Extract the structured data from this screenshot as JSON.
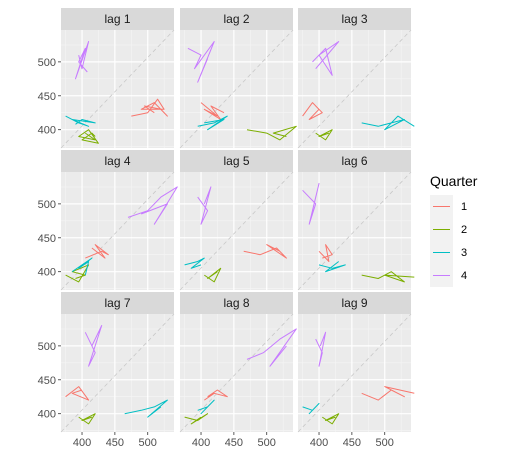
{
  "chart_data": {
    "type": "line",
    "facets": [
      "lag 1",
      "lag 2",
      "lag 3",
      "lag 4",
      "lag 5",
      "lag 6",
      "lag 7",
      "lag 8",
      "lag 9"
    ],
    "x_ticks": [
      400,
      450,
      500
    ],
    "y_ticks": [
      400,
      450,
      500
    ],
    "xlim": [
      368,
      540
    ],
    "ylim": [
      373,
      547
    ],
    "diagonal": "dashed y = x reference line",
    "grid": true,
    "legend": {
      "title": "Quarter",
      "position": "right",
      "entries": [
        {
          "label": "1",
          "color": "#F8766D"
        },
        {
          "label": "2",
          "color": "#7CAE00"
        },
        {
          "label": "3",
          "color": "#00BFC4"
        },
        {
          "label": "4",
          "color": "#C77CFF"
        }
      ]
    },
    "panels": [
      {
        "title": "lag 1",
        "series": {
          "1": [
            [
              475,
              420
            ],
            [
              500,
              425
            ],
            [
              515,
              445
            ],
            [
              525,
              430
            ],
            [
              490,
              430
            ],
            [
              510,
              440
            ],
            [
              530,
              420
            ],
            [
              520,
              430
            ],
            [
              495,
              435
            ],
            [
              510,
              425
            ]
          ],
          "2": [
            [
              405,
              395
            ],
            [
              420,
              385
            ],
            [
              395,
              390
            ],
            [
              410,
              400
            ],
            [
              425,
              380
            ],
            [
              400,
              385
            ],
            [
              415,
              395
            ],
            [
              420,
              390
            ]
          ],
          "3": [
            [
              375,
              420
            ],
            [
              395,
              410
            ],
            [
              410,
              405
            ],
            [
              385,
              415
            ],
            [
              420,
              410
            ],
            [
              400,
              415
            ],
            [
              390,
              408
            ]
          ],
          "4": [
            [
              395,
              510
            ],
            [
              400,
              490
            ],
            [
              410,
              530
            ],
            [
              390,
              475
            ],
            [
              405,
              520
            ],
            [
              395,
              500
            ],
            [
              408,
              485
            ]
          ]
        }
      },
      {
        "title": "lag 2",
        "series": {
          "1": [
            [
              400,
              440
            ],
            [
              425,
              420
            ],
            [
              405,
              430
            ],
            [
              430,
              415
            ],
            [
              415,
              435
            ],
            [
              435,
              425
            ]
          ],
          "2": [
            [
              470,
              400
            ],
            [
              500,
              395
            ],
            [
              520,
              385
            ],
            [
              545,
              405
            ],
            [
              510,
              395
            ],
            [
              530,
              390
            ]
          ],
          "3": [
            [
              395,
              405
            ],
            [
              420,
              410
            ],
            [
              440,
              420
            ],
            [
              410,
              400
            ],
            [
              435,
              415
            ],
            [
              405,
              410
            ]
          ],
          "4": [
            [
              380,
              520
            ],
            [
              400,
              510
            ],
            [
              390,
              490
            ],
            [
              420,
              530
            ],
            [
              395,
              470
            ],
            [
              410,
              505
            ]
          ]
        }
      },
      {
        "title": "lag 3",
        "series": {
          "1": [
            [
              375,
              420
            ],
            [
              390,
              440
            ],
            [
              400,
              430
            ],
            [
              385,
              415
            ],
            [
              405,
              425
            ],
            [
              395,
              435
            ]
          ],
          "2": [
            [
              395,
              395
            ],
            [
              410,
              385
            ],
            [
              420,
              400
            ],
            [
              400,
              390
            ],
            [
              415,
              395
            ]
          ],
          "3": [
            [
              465,
              410
            ],
            [
              490,
              405
            ],
            [
              510,
              410
            ],
            [
              530,
              415
            ],
            [
              500,
              400
            ],
            [
              520,
              420
            ],
            [
              545,
              405
            ]
          ],
          "4": [
            [
              390,
              500
            ],
            [
              410,
              520
            ],
            [
              420,
              480
            ],
            [
              400,
              510
            ],
            [
              430,
              530
            ],
            [
              395,
              490
            ]
          ]
        }
      },
      {
        "title": "lag 4",
        "series": {
          "1": [
            [
              405,
              420
            ],
            [
              430,
              430
            ],
            [
              440,
              425
            ],
            [
              420,
              440
            ],
            [
              435,
              420
            ],
            [
              415,
              435
            ]
          ],
          "2": [
            [
              375,
              395
            ],
            [
              395,
              385
            ],
            [
              410,
              410
            ],
            [
              385,
              400
            ],
            [
              405,
              395
            ],
            [
              390,
              390
            ]
          ],
          "3": [
            [
              385,
              400
            ],
            [
              400,
              410
            ],
            [
              415,
              420
            ],
            [
              395,
              405
            ],
            [
              410,
              415
            ],
            [
              405,
              395
            ]
          ],
          "4": [
            [
              470,
              480
            ],
            [
              500,
              490
            ],
            [
              520,
              510
            ],
            [
              545,
              525
            ],
            [
              510,
              470
            ],
            [
              530,
              500
            ],
            [
              490,
              485
            ]
          ]
        }
      },
      {
        "title": "lag 5",
        "series": {
          "1": [
            [
              465,
              430
            ],
            [
              490,
              425
            ],
            [
              515,
              435
            ],
            [
              530,
              420
            ],
            [
              500,
              440
            ],
            [
              520,
              430
            ]
          ],
          "2": [
            [
              405,
              395
            ],
            [
              420,
              385
            ],
            [
              430,
              405
            ],
            [
              410,
              390
            ],
            [
              425,
              400
            ]
          ],
          "3": [
            [
              375,
              410
            ],
            [
              395,
              415
            ],
            [
              405,
              420
            ],
            [
              385,
              405
            ],
            [
              400,
              410
            ]
          ],
          "4": [
            [
              395,
              510
            ],
            [
              410,
              490
            ],
            [
              400,
              470
            ],
            [
              415,
              525
            ],
            [
              405,
              500
            ]
          ]
        }
      },
      {
        "title": "lag 6",
        "series": {
          "1": [
            [
              400,
              430
            ],
            [
              415,
              415
            ],
            [
              410,
              440
            ],
            [
              420,
              425
            ],
            [
              405,
              420
            ]
          ],
          "2": [
            [
              465,
              395
            ],
            [
              490,
              390
            ],
            [
              510,
              400
            ],
            [
              530,
              385
            ],
            [
              500,
              395
            ],
            [
              545,
              392
            ]
          ],
          "3": [
            [
              400,
              410
            ],
            [
              420,
              405
            ],
            [
              440,
              410
            ],
            [
              410,
              400
            ],
            [
              430,
              415
            ]
          ],
          "4": [
            [
              375,
              520
            ],
            [
              395,
              500
            ],
            [
              385,
              470
            ],
            [
              400,
              530
            ],
            [
              390,
              490
            ]
          ]
        }
      },
      {
        "title": "lag 7",
        "series": {
          "1": [
            [
              375,
              425
            ],
            [
              395,
              440
            ],
            [
              410,
              420
            ],
            [
              385,
              430
            ],
            [
              400,
              435
            ]
          ],
          "2": [
            [
              395,
              395
            ],
            [
              410,
              385
            ],
            [
              420,
              400
            ],
            [
              400,
              390
            ],
            [
              415,
              395
            ]
          ],
          "3": [
            [
              465,
              400
            ],
            [
              490,
              405
            ],
            [
              510,
              410
            ],
            [
              530,
              420
            ],
            [
              500,
              395
            ],
            [
              520,
              410
            ]
          ],
          "4": [
            [
              405,
              520
            ],
            [
              420,
              490
            ],
            [
              410,
              470
            ],
            [
              430,
              530
            ],
            [
              415,
              500
            ]
          ]
        }
      },
      {
        "title": "lag 8",
        "series": {
          "1": [
            [
              405,
              420
            ],
            [
              420,
              430
            ],
            [
              440,
              425
            ],
            [
              425,
              435
            ],
            [
              410,
              425
            ]
          ],
          "2": [
            [
              375,
              395
            ],
            [
              395,
              390
            ],
            [
              410,
              400
            ],
            [
              385,
              385
            ],
            [
              400,
              395
            ]
          ],
          "3": [
            [
              395,
              405
            ],
            [
              410,
              410
            ],
            [
              420,
              420
            ],
            [
              400,
              400
            ],
            [
              415,
              415
            ]
          ],
          "4": [
            [
              470,
              480
            ],
            [
              495,
              490
            ],
            [
              520,
              510
            ],
            [
              545,
              525
            ],
            [
              505,
              470
            ],
            [
              530,
              500
            ]
          ]
        }
      },
      {
        "title": "lag 9",
        "series": {
          "1": [
            [
              465,
              430
            ],
            [
              490,
              420
            ],
            [
              510,
              435
            ],
            [
              530,
              425
            ],
            [
              500,
              440
            ],
            [
              545,
              430
            ]
          ],
          "2": [
            [
              405,
              395
            ],
            [
              420,
              385
            ],
            [
              430,
              400
            ],
            [
              410,
              390
            ],
            [
              425,
              395
            ]
          ],
          "3": [
            [
              375,
              410
            ],
            [
              390,
              405
            ],
            [
              400,
              415
            ],
            [
              385,
              400
            ],
            [
              395,
              410
            ]
          ],
          "4": [
            [
              395,
              510
            ],
            [
              405,
              490
            ],
            [
              400,
              470
            ],
            [
              410,
              520
            ],
            [
              402,
              500
            ]
          ]
        }
      }
    ]
  }
}
